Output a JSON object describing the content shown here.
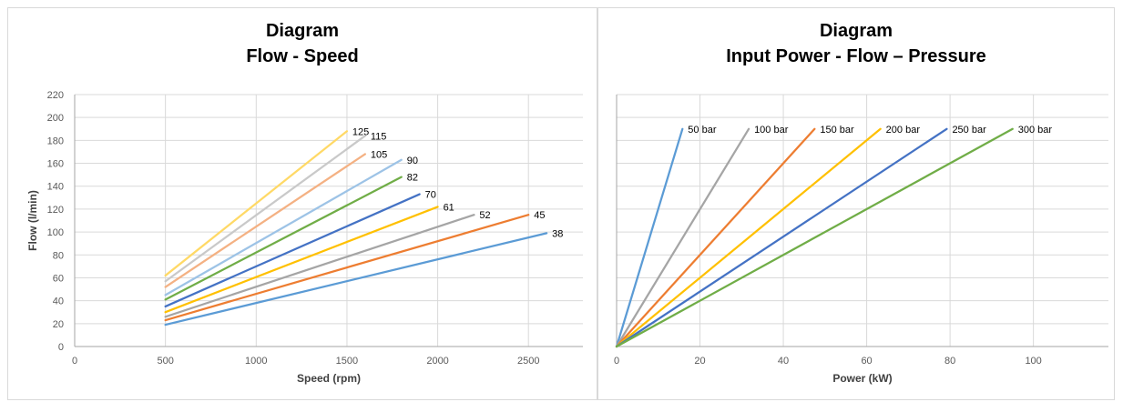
{
  "chart_data": [
    {
      "type": "line",
      "title": "Diagram",
      "subtitle": "Flow - Speed",
      "xlabel": "Speed (rpm)",
      "ylabel": "Flow (l/min)",
      "xlim": [
        0,
        2800
      ],
      "ylim": [
        0,
        220
      ],
      "xticks": [
        0,
        500,
        1000,
        1500,
        2000,
        2500
      ],
      "yticks": [
        0,
        20,
        40,
        60,
        80,
        100,
        120,
        140,
        160,
        180,
        200,
        220
      ],
      "grid": true,
      "series": [
        {
          "name": "38",
          "color": "#5B9BD5",
          "x": [
            500,
            2600
          ],
          "y": [
            19,
            99
          ]
        },
        {
          "name": "45",
          "color": "#ED7D31",
          "x": [
            500,
            2500
          ],
          "y": [
            23,
            115
          ]
        },
        {
          "name": "52",
          "color": "#A5A5A5",
          "x": [
            500,
            2200
          ],
          "y": [
            26,
            115
          ]
        },
        {
          "name": "61",
          "color": "#FFC000",
          "x": [
            500,
            2000
          ],
          "y": [
            30,
            122
          ]
        },
        {
          "name": "70",
          "color": "#4472C4",
          "x": [
            500,
            1900
          ],
          "y": [
            35,
            133
          ]
        },
        {
          "name": "82",
          "color": "#70AD47",
          "x": [
            500,
            1800
          ],
          "y": [
            41,
            148
          ]
        },
        {
          "name": "90",
          "color": "#9DC3E6",
          "x": [
            500,
            1800
          ],
          "y": [
            45,
            163
          ]
        },
        {
          "name": "105",
          "color": "#F4B183",
          "x": [
            500,
            1600
          ],
          "y": [
            52,
            168
          ]
        },
        {
          "name": "115",
          "color": "#C9C9C9",
          "x": [
            500,
            1600
          ],
          "y": [
            57,
            184
          ]
        },
        {
          "name": "125",
          "color": "#FFD966",
          "x": [
            500,
            1500
          ],
          "y": [
            62,
            188
          ]
        }
      ]
    },
    {
      "type": "line",
      "title": "Diagram",
      "subtitle": "Input Power - Flow – Pressure",
      "xlabel": "Power (kW)",
      "ylabel": "",
      "xlim": [
        0,
        118
      ],
      "ylim": [
        0,
        220
      ],
      "xticks": [
        0,
        20,
        40,
        60,
        80,
        100
      ],
      "grid": true,
      "series": [
        {
          "name": "50 bar",
          "color": "#5B9BD5",
          "x": [
            0,
            15.8
          ],
          "y": [
            0,
            190
          ]
        },
        {
          "name": "100 bar",
          "color": "#A5A5A5",
          "x": [
            0,
            31.7
          ],
          "y": [
            0,
            190
          ]
        },
        {
          "name": "150 bar",
          "color": "#ED7D31",
          "x": [
            0,
            47.5
          ],
          "y": [
            0,
            190
          ]
        },
        {
          "name": "200 bar",
          "color": "#FFC000",
          "x": [
            0,
            63.3
          ],
          "y": [
            0,
            190
          ]
        },
        {
          "name": "250 bar",
          "color": "#4472C4",
          "x": [
            0,
            79.2
          ],
          "y": [
            0,
            190
          ]
        },
        {
          "name": "300 bar",
          "color": "#70AD47",
          "x": [
            0,
            95
          ],
          "y": [
            0,
            190
          ]
        }
      ]
    }
  ]
}
